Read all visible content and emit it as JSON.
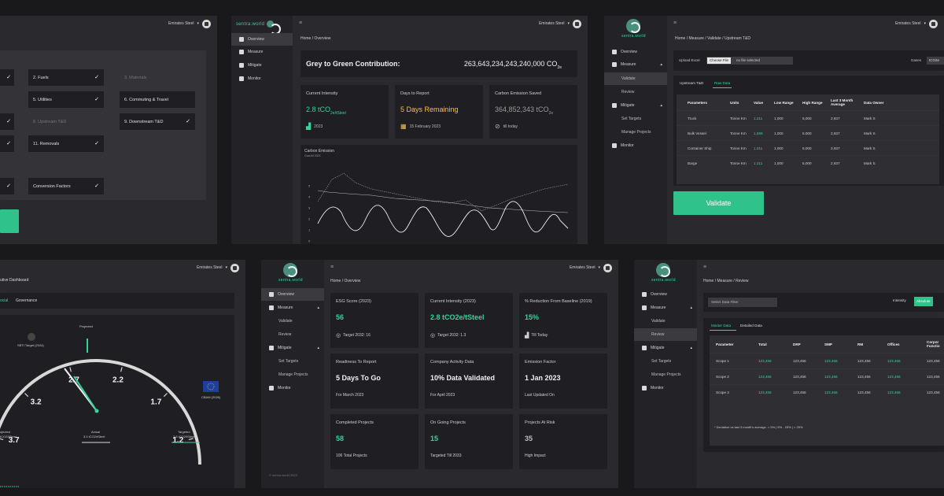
{
  "company": "Emirates Steel",
  "logo_text": "sentra.world",
  "panel1": {
    "tiles": [
      {
        "label": "2. Fuels",
        "checked": true,
        "dim": false
      },
      {
        "label": "3. Materials",
        "checked": false,
        "dim": true
      },
      {
        "label": "5. Utilities",
        "checked": true,
        "dim": false
      },
      {
        "label": "6. Commuting & Travel",
        "checked": false,
        "dim": false
      },
      {
        "label": "8. Upstream T&D",
        "checked": false,
        "dim": true
      },
      {
        "label": "9. Downstream T&D",
        "checked": true,
        "dim": false
      },
      {
        "label": "11. Removals",
        "checked": true,
        "dim": false
      },
      {
        "label": "Conversion Factors",
        "checked": true,
        "dim": false
      }
    ]
  },
  "panel2": {
    "nav": [
      "Overview",
      "Measure",
      "Mitigate",
      "Monitor"
    ],
    "breadcrumb": "Home / Overview",
    "headline_label": "Grey to Green Contribution:",
    "headline_value": "263,643,234,243,240,000 CO",
    "headline_sub": "2e",
    "intensity_label": "Current Intensity",
    "intensity_value": "2.8 tCO",
    "intensity_unit": "2e/tSteel",
    "intensity_year": "2023",
    "report_label": "Days to Report",
    "report_value": "5 Days Remaining",
    "report_date": "15 February 2023",
    "saved_label": "Carbon Emission Saved",
    "saved_value": "364,852,343 tCO",
    "saved_sub": "2e",
    "saved_note": "till today",
    "chart_title": "Carbon Emission",
    "chart_subtitle": "Goal till 2023",
    "chart_yticks": [
      "5",
      "4",
      "3",
      "2",
      "1",
      "0"
    ]
  },
  "panel3": {
    "nav": [
      "Overview",
      "Measure",
      "Validate",
      "Review",
      "Mitigate",
      "Set Targets",
      "Manage Projects",
      "Monitor"
    ],
    "breadcrumb": "Home / Measure / Validate / Upstream T&D",
    "upload_label": "Upload Excel",
    "choose_file": "Choose File",
    "no_file": "no file selected",
    "gases_label": "Gases",
    "gases_value": "tCO2e",
    "tabs": [
      "Upstream T&D",
      "Raw Data"
    ],
    "columns": [
      "Parameters",
      "Units",
      "Value",
      "Low Range",
      "High Range",
      "Last 3 Month Average",
      "Data Owner"
    ],
    "rows": [
      [
        "Truck",
        "Tonne Km",
        "1.211",
        "1,000",
        "5,000",
        "2,937",
        "Mark S"
      ],
      [
        "Bulk Vessel",
        "Tonne Km",
        "1,599",
        "1,000",
        "5,000",
        "2,937",
        "Mark S"
      ],
      [
        "Container Ship",
        "Tonne Km",
        "1.211",
        "1,000",
        "5,000",
        "2,937",
        "Mark S"
      ],
      [
        "Barge",
        "Tonne Km",
        "1.211",
        "1,000",
        "5,000",
        "2,937",
        "Mark S"
      ]
    ],
    "validate_button": "Validate"
  },
  "panel4": {
    "title": "utive Dashboard",
    "tabs": [
      "ocial",
      "Governance"
    ],
    "gauge_ticks": [
      "3.7",
      "3.2",
      "2.7",
      "2.2",
      "1.7",
      "1.2"
    ],
    "projected_label": "Projected",
    "sbti_label": "SBTI Target (2024)",
    "eu_label": "CBAM (2026)",
    "legend": [
      {
        "label": "ojected",
        "value": "tCO2/tSteel"
      },
      {
        "label": "Actual",
        "value": "3.0 tCO2/tSteel"
      },
      {
        "label": "Targeted",
        "value": "2.8 tCO2/tSteel"
      }
    ]
  },
  "panel5": {
    "nav": [
      "Overview",
      "Measure",
      "Validate",
      "Review",
      "Mitigate",
      "Set Targets",
      "Manage Projects",
      "Monitor"
    ],
    "breadcrumb": "Home / Overview",
    "footer": "© sentra.world 2023",
    "cards": [
      {
        "label": "ESG Score (2023)",
        "value": "56",
        "sub": "Target 2032: 16",
        "value_color": "green"
      },
      {
        "label": "Current Intensity (2023)",
        "value": "2.8 tCO2e/tSteel",
        "sub": "Target 2032: 1.3",
        "value_color": "green"
      },
      {
        "label": "% Reduction From Baseline (2019)",
        "value": "15%",
        "sub": "Till Today",
        "value_color": "green"
      },
      {
        "label": "Readiness To Report",
        "value": "5 Days To Go",
        "sub": "For March 2023",
        "value_color": "white"
      },
      {
        "label": "Company Activity Data",
        "value": "10% Data Validated",
        "sub": "For April 2023",
        "value_color": "white"
      },
      {
        "label": "Emission Factor",
        "value": "1 Jan 2023",
        "sub": "Last Updated On",
        "value_color": "white"
      },
      {
        "label": "Completed Projects",
        "value": "58",
        "sub": "106 Total Projects",
        "value_color": "green"
      },
      {
        "label": "On Going Projects",
        "value": "15",
        "sub": "Targeted Till 2033",
        "value_color": "green"
      },
      {
        "label": "Projects At Risk",
        "value": "35",
        "sub": "High Impact",
        "value_color": "grey"
      }
    ]
  },
  "panel6": {
    "nav": [
      "Overview",
      "Measure",
      "Validate",
      "Review",
      "Mitigate",
      "Set Targets",
      "Manage Projects",
      "Monitor"
    ],
    "breadcrumb": "Home / Measure / Review",
    "filter_placeholder": "Select Data Filter",
    "toggle": [
      "Intensity",
      "Absolute"
    ],
    "tabs": [
      "Master Data",
      "Detailed Data"
    ],
    "columns": [
      "Parameter",
      "Total",
      "DRP",
      "SMP",
      "RM",
      "Offices",
      "Corpor Functio"
    ],
    "rows": [
      [
        "Scope 1",
        "123,456",
        "123,456",
        "123,456",
        "123,456",
        "123,456",
        "123,456"
      ],
      [
        "Scope 2",
        "123,456",
        "123,456",
        "123,456",
        "123,456",
        "123,456",
        "123,456"
      ],
      [
        "Scope 3",
        "123,456",
        "123,456",
        "123,456",
        "123,456",
        "123,456",
        "123,456"
      ]
    ],
    "footnote": "* Deviation vs last 3 month's average.  < 5%  |  5% - 25%  |  > 25%"
  }
}
